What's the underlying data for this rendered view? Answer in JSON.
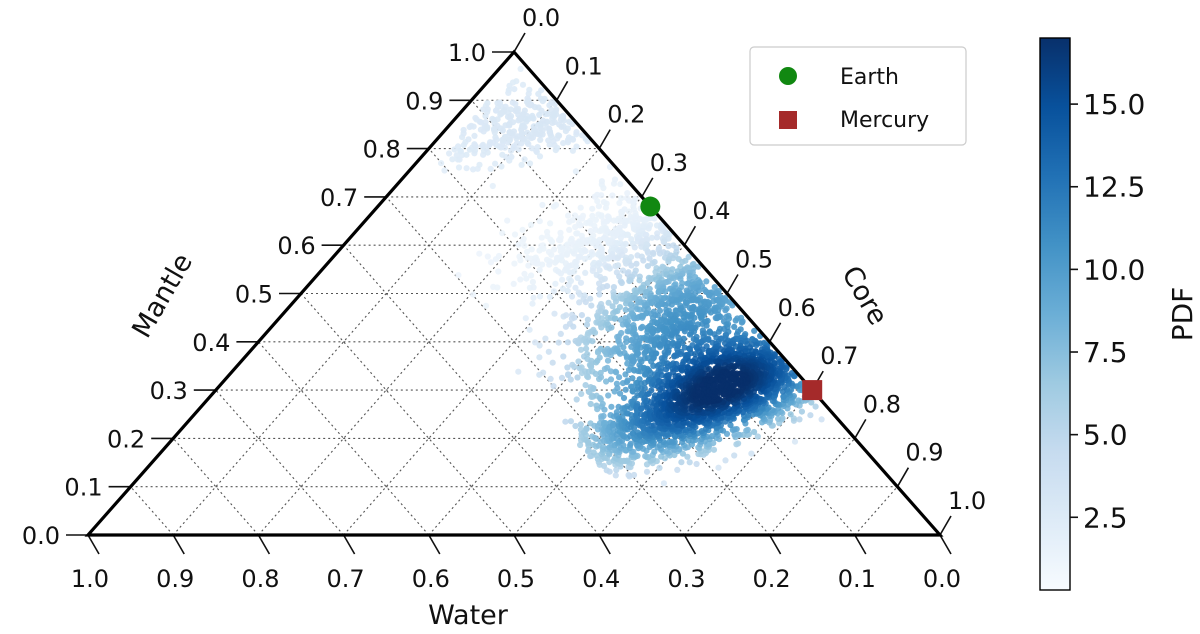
{
  "chart_data": {
    "type": "scatter",
    "subtype": "ternary-density",
    "axes": {
      "mantle": {
        "label": "Mantle",
        "ticks": [
          "0.0",
          "0.1",
          "0.2",
          "0.3",
          "0.4",
          "0.5",
          "0.6",
          "0.7",
          "0.8",
          "0.9",
          "1.0"
        ]
      },
      "core": {
        "label": "Core",
        "ticks": [
          "0.0",
          "0.1",
          "0.2",
          "0.3",
          "0.4",
          "0.5",
          "0.6",
          "0.7",
          "0.8",
          "0.9",
          "1.0"
        ]
      },
      "water": {
        "label": "Water",
        "ticks": [
          "1.0",
          "0.9",
          "0.8",
          "0.7",
          "0.6",
          "0.5",
          "0.4",
          "0.3",
          "0.2",
          "0.1",
          "0.0"
        ]
      }
    },
    "markers": [
      {
        "name": "Earth",
        "core": 0.32,
        "mantle": 0.68,
        "water": 0.0,
        "shape": "circle",
        "color": "#118811"
      },
      {
        "name": "Mercury",
        "core": 0.7,
        "mantle": 0.3,
        "water": 0.0,
        "shape": "square",
        "color": "#a52a2a"
      }
    ],
    "density": {
      "peak": {
        "core": 0.6,
        "mantle": 0.31,
        "water": 0.09,
        "value": 16.8
      },
      "ridge": {
        "core": 0.46,
        "mantle": 0.47,
        "water": 0.07,
        "value": 10
      },
      "upper_tail": {
        "core": 0.1,
        "mantle": 0.86,
        "water": 0.04,
        "value": 2.5
      },
      "lower_tail": {
        "core": 0.54,
        "mantle": 0.2,
        "water": 0.26,
        "value": 4
      }
    },
    "colorbar": {
      "label": "PDF",
      "range": [
        0.3,
        17.0
      ],
      "ticks": [
        "2.5",
        "5.0",
        "7.5",
        "10.0",
        "12.5",
        "15.0"
      ],
      "tick_values": [
        2.5,
        5.0,
        7.5,
        10.0,
        12.5,
        15.0
      ],
      "colormap": "Blues",
      "color_min": "#f7fbff",
      "color_max": "#08306b"
    },
    "legend": {
      "placement": "top-right",
      "entries": [
        "Earth",
        "Mercury"
      ]
    },
    "grid": true
  }
}
